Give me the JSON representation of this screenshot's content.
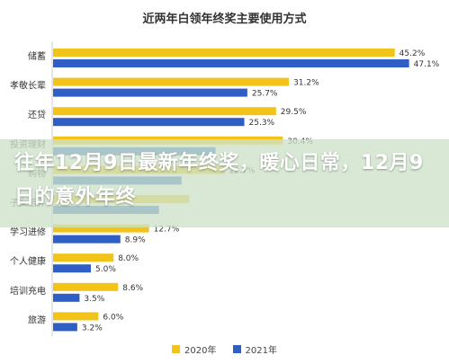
{
  "chart_data": {
    "type": "bar",
    "orientation": "horizontal",
    "title": "近两年白领年终奖主要使用方式",
    "categories": [
      "储蓄",
      "孝敬长辈",
      "还贷",
      "投资理财",
      "购物",
      "子女培养",
      "学习进修",
      "个人健康",
      "培训充电",
      "旅游"
    ],
    "series": [
      {
        "name": "2020年",
        "color": "#f2c318",
        "values": [
          45.2,
          31.2,
          29.5,
          30.4,
          22.7,
          18.0,
          12.7,
          8.0,
          8.6,
          6.0
        ],
        "labels": [
          "45.2%",
          "31.2%",
          "29.5%",
          "30.4%",
          "22.7%",
          "",
          "12.7%",
          "8.0%",
          "8.6%",
          "6.0%"
        ]
      },
      {
        "name": "2021年",
        "color": "#2f5fc4",
        "values": [
          47.1,
          25.7,
          25.3,
          21.5,
          17.0,
          14.0,
          8.9,
          5.0,
          3.5,
          3.2
        ],
        "labels": [
          "47.1%",
          "25.7%",
          "25.3%",
          "",
          "",
          "",
          "8.9%",
          "5.0%",
          "3.5%",
          "3.2%"
        ]
      }
    ],
    "xlim": [
      0,
      50
    ],
    "grid": false,
    "legend_position": "bottom"
  },
  "overlay": {
    "text": "往年12月9日最新年终奖，暖心日常，12月9日的意外年终",
    "background": "#cde1c8"
  },
  "colors": {
    "axis": "#cccccc",
    "label": "#333333"
  }
}
